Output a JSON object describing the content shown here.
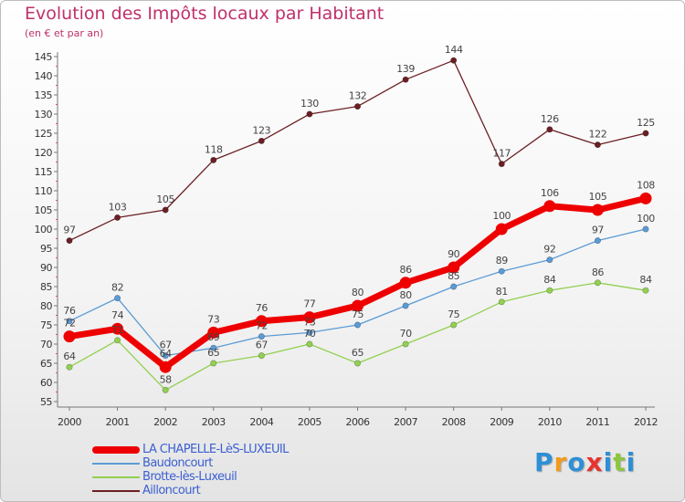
{
  "header": {
    "title": "Evolution des Impôts locaux par Habitant",
    "subtitle": "(en € et par an)"
  },
  "chart_data": {
    "type": "line",
    "title": "Evolution des Impôts locaux par Habitant",
    "subtitle": "(en € et par an)",
    "xlabel": "",
    "ylabel": "",
    "categories": [
      "2000",
      "2001",
      "2002",
      "2003",
      "2004",
      "2005",
      "2006",
      "2007",
      "2008",
      "2009",
      "2010",
      "2011",
      "2012"
    ],
    "ylim": [
      55,
      145
    ],
    "yticks": [
      55,
      60,
      65,
      70,
      75,
      80,
      85,
      90,
      95,
      100,
      105,
      110,
      115,
      120,
      125,
      130,
      135,
      140,
      145
    ],
    "grid": false,
    "legend_position": "bottom-left",
    "series": [
      {
        "name": "LA CHAPELLE-LèS-LUXEUIL",
        "color": "#ee0000",
        "values": [
          72,
          74,
          64,
          73,
          76,
          77,
          80,
          86,
          90,
          100,
          106,
          105,
          108
        ]
      },
      {
        "name": "Baudoncourt",
        "color": "#5b9bd5",
        "values": [
          76,
          82,
          67,
          69,
          72,
          73,
          75,
          80,
          85,
          89,
          92,
          97,
          100
        ]
      },
      {
        "name": "Brotte-lès-Luxeuil",
        "color": "#92d050",
        "values": [
          64,
          71,
          58,
          65,
          67,
          70,
          65,
          70,
          75,
          81,
          84,
          86,
          84
        ]
      },
      {
        "name": "Ailloncourt",
        "color": "#6b1f24",
        "values": [
          97,
          103,
          105,
          118,
          123,
          130,
          132,
          139,
          144,
          117,
          126,
          122,
          125
        ]
      }
    ]
  },
  "legend": {
    "items": [
      {
        "label": "LA CHAPELLE-LèS-LUXEUIL",
        "color": "#ee0000"
      },
      {
        "label": "Baudoncourt",
        "color": "#5b9bd5"
      },
      {
        "label": "Brotte-lès-Luxeuil",
        "color": "#92d050"
      },
      {
        "label": "Ailloncourt",
        "color": "#6b1f24"
      }
    ]
  },
  "logo": {
    "letters": [
      "P",
      "r",
      "o",
      "x",
      "i",
      "t",
      "i"
    ],
    "colors": [
      "#2e8fd6",
      "#f29a1f",
      "#2e8fd6",
      "#e8322f",
      "#2e8fd6",
      "#8cc63f",
      "#2e8fd6"
    ]
  }
}
